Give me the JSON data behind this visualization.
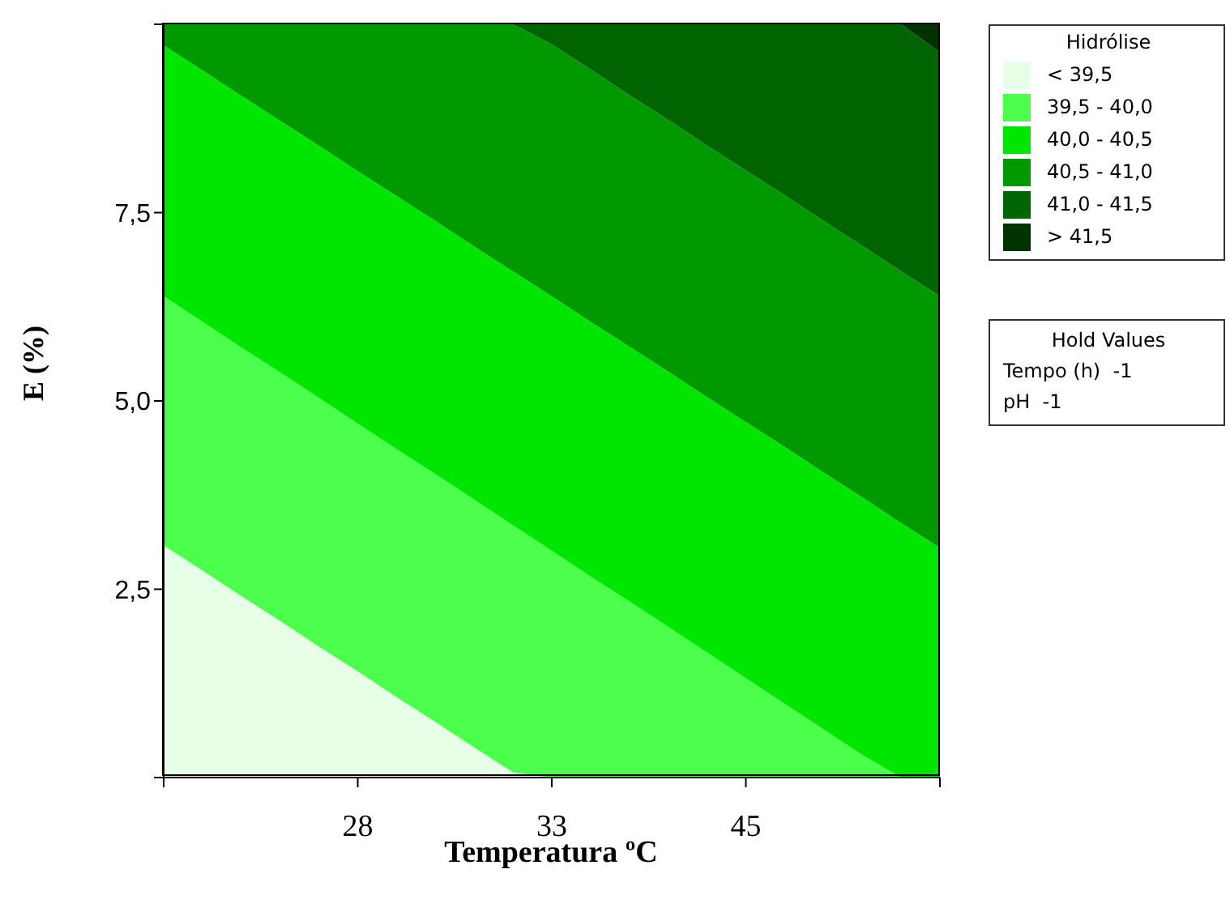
{
  "chart_data": {
    "type": "area",
    "xlabel": "Temperatura ºC",
    "ylabel": "E (%)",
    "legend_title": "Hidrólise",
    "legend": "right",
    "stacked": true,
    "categories": [
      null,
      null,
      null,
      null,
      null,
      "28",
      null,
      null,
      null,
      null,
      "33",
      null,
      null,
      null,
      null,
      "45",
      null,
      null,
      null,
      null,
      null
    ],
    "ylim": [
      0,
      10
    ],
    "yticks": [
      {
        "value": 0,
        "label": null
      },
      {
        "value": 2.5,
        "label": "2,5"
      },
      {
        "value": 5,
        "label": "5,0"
      },
      {
        "value": 7.5,
        "label": "7,5"
      },
      {
        "value": 10,
        "label": null
      }
    ],
    "series": [
      {
        "name": "< 39,5",
        "color": "#e6ffe6",
        "values": [
          3.08,
          2.75,
          2.41,
          2.08,
          1.74,
          1.41,
          1.07,
          0.74,
          0.4,
          0.07,
          0,
          0,
          0,
          0,
          0,
          0,
          0,
          0,
          0,
          0,
          0
        ]
      },
      {
        "name": "39,5 - 40,0",
        "color": "#4cff4c",
        "values": [
          3.31,
          3.3,
          3.3,
          3.3,
          3.3,
          3.29,
          3.29,
          3.29,
          3.29,
          3.28,
          3.01,
          2.67,
          2.34,
          2,
          1.66,
          1.32,
          0.98,
          0.64,
          0.3,
          0,
          0
        ]
      },
      {
        "name": "40,0 - 40,5",
        "color": "#00e600",
        "values": [
          3.33,
          3.34,
          3.34,
          3.34,
          3.35,
          3.35,
          3.36,
          3.36,
          3.36,
          3.37,
          3.38,
          3.38,
          3.38,
          3.39,
          3.39,
          3.4,
          3.41,
          3.41,
          3.42,
          3.38,
          3.05
        ]
      },
      {
        "name": "40,5 - 41,0",
        "color": "#009900",
        "values": [
          0.28,
          0.61,
          0.95,
          1.28,
          1.61,
          1.95,
          2.28,
          2.61,
          2.95,
          3.28,
          3.34,
          3.35,
          3.34,
          3.34,
          3.34,
          3.34,
          3.34,
          3.34,
          3.34,
          3.34,
          3.34
        ]
      },
      {
        "name": "41,0 - 41,5",
        "color": "#006400",
        "values": [
          0,
          0,
          0,
          0,
          0,
          0,
          0,
          0,
          0,
          0,
          0.27,
          0.6,
          0.94,
          1.27,
          1.61,
          1.94,
          2.27,
          2.61,
          2.94,
          3.28,
          3.24
        ]
      },
      {
        "name": "> 41,5",
        "color": "#003300",
        "values": [
          0,
          0,
          0,
          0,
          0,
          0,
          0,
          0,
          0,
          0,
          0,
          0,
          0,
          0,
          0,
          0,
          0,
          0,
          0,
          0,
          0.37
        ]
      }
    ],
    "annotations": [
      "Hold Values",
      "Tempo (h)  -1",
      "pH  -1"
    ]
  }
}
